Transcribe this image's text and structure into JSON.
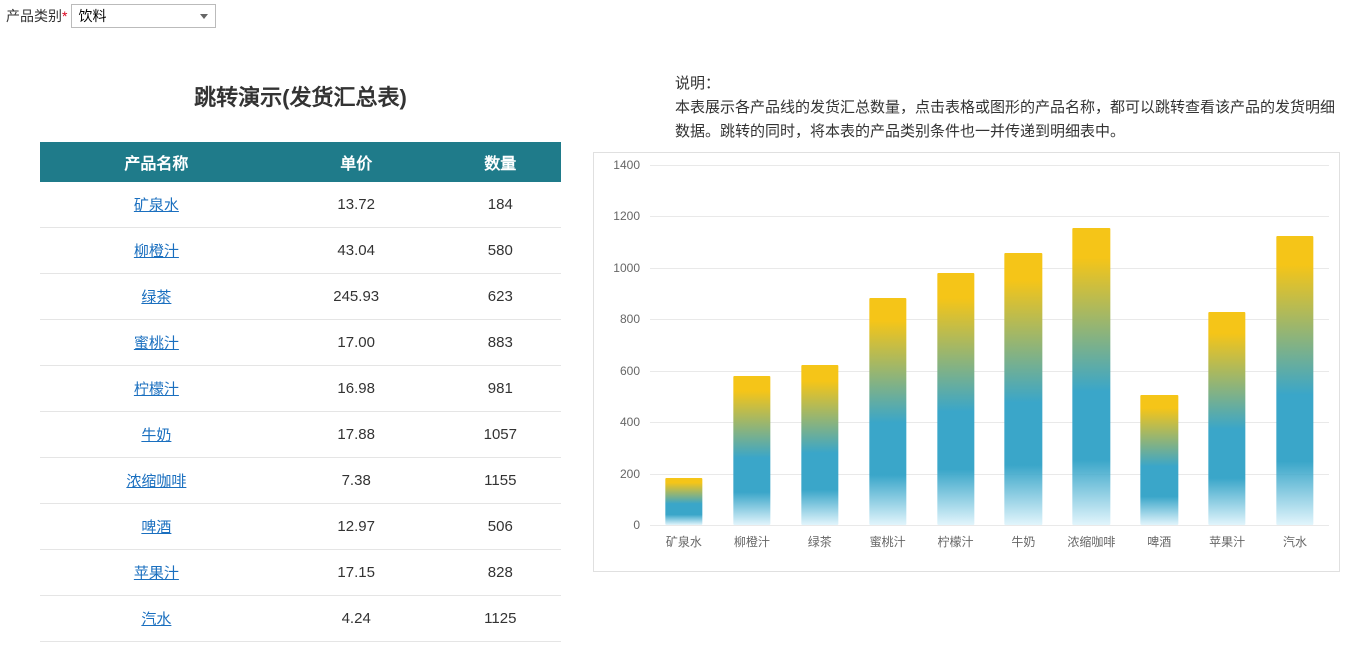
{
  "filter": {
    "label": "产品类别",
    "required_marker": "*",
    "selected": "饮料",
    "options": [
      "饮料"
    ]
  },
  "title": "跳转演示(发货汇总表)",
  "table": {
    "columns": [
      "产品名称",
      "单价",
      "数量"
    ],
    "header_bg": "#1f7b8a",
    "header_color": "#ffffff",
    "border_color": "#e5e5e5",
    "link_color": "#1a6fbf",
    "rows": [
      {
        "name": "矿泉水",
        "price": "13.72",
        "qty": "184"
      },
      {
        "name": "柳橙汁",
        "price": "43.04",
        "qty": "580"
      },
      {
        "name": "绿茶",
        "price": "245.93",
        "qty": "623"
      },
      {
        "name": "蜜桃汁",
        "price": "17.00",
        "qty": "883"
      },
      {
        "name": "柠檬汁",
        "price": "16.98",
        "qty": "981"
      },
      {
        "name": "牛奶",
        "price": "17.88",
        "qty": "1057"
      },
      {
        "name": "浓缩咖啡",
        "price": "7.38",
        "qty": "1155"
      },
      {
        "name": "啤酒",
        "price": "12.97",
        "qty": "506"
      },
      {
        "name": "苹果汁",
        "price": "17.15",
        "qty": "828"
      },
      {
        "name": "汽水",
        "price": "4.24",
        "qty": "1125"
      }
    ]
  },
  "description": {
    "heading": "说明：",
    "body": "本表展示各产品线的发货汇总数量，点击表格或图形的产品名称，都可以跳转查看该产品的发货明细数据。跳转的同时，将本表的产品类别条件也一并传递到明细表中。"
  },
  "chart": {
    "type": "bar",
    "categories": [
      "矿泉水",
      "柳橙汁",
      "绿茶",
      "蜜桃汁",
      "柠檬汁",
      "牛奶",
      "浓缩咖啡",
      "啤酒",
      "苹果汁",
      "汽水"
    ],
    "values": [
      184,
      580,
      623,
      883,
      981,
      1057,
      1155,
      506,
      828,
      1125
    ],
    "ylim": [
      0,
      1400
    ],
    "ytick_step": 200,
    "yticks": [
      0,
      200,
      400,
      600,
      800,
      1000,
      1200,
      1400
    ],
    "grid_color": "#e9e9e9",
    "axis_label_color": "#666666",
    "axis_label_fontsize": 12,
    "bar_gradient_top": "#f5c518",
    "bar_gradient_mid": "#3aa6c9",
    "bar_gradient_bottom": "rgba(170,225,245,0.35)",
    "bar_width_ratio": 0.55,
    "background_color": "#ffffff",
    "border_color": "#e0e0e0"
  }
}
